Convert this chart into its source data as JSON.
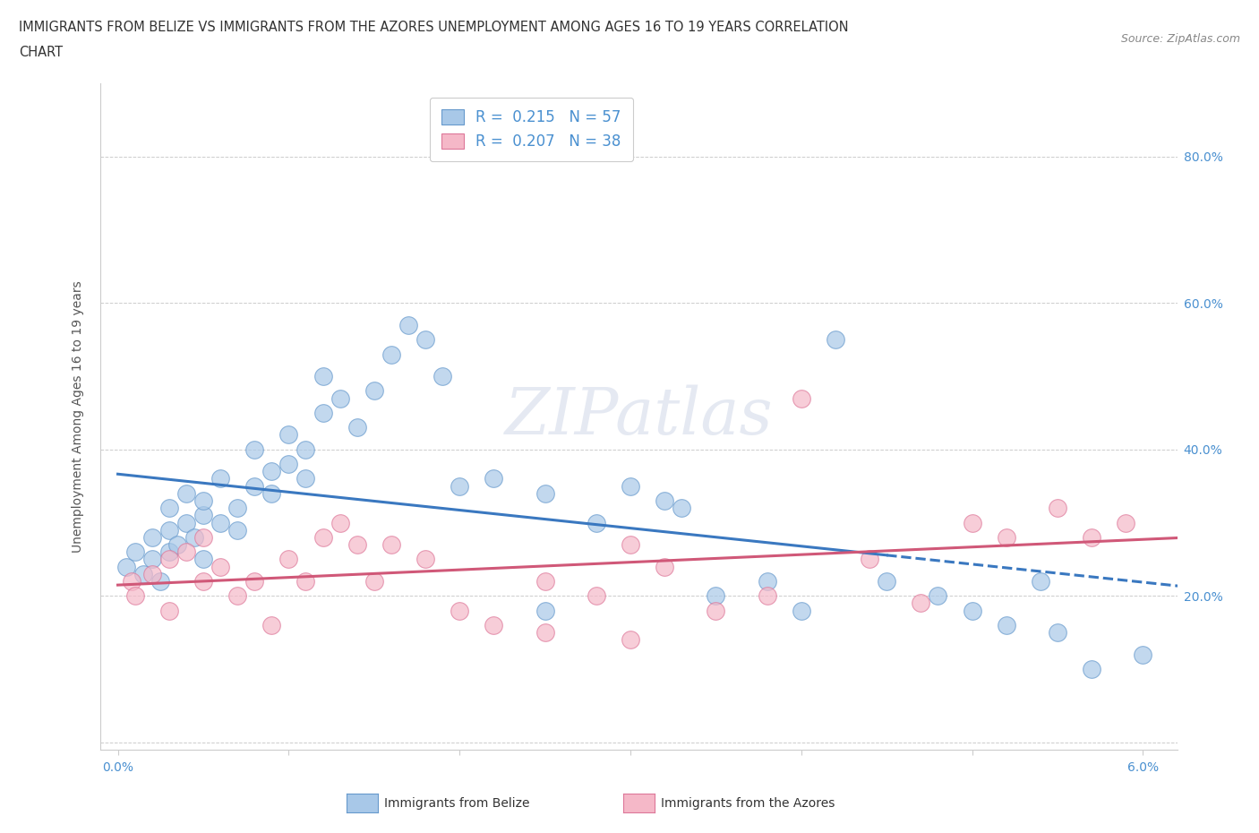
{
  "title_line1": "IMMIGRANTS FROM BELIZE VS IMMIGRANTS FROM THE AZORES UNEMPLOYMENT AMONG AGES 16 TO 19 YEARS CORRELATION",
  "title_line2": "CHART",
  "source": "Source: ZipAtlas.com",
  "ylabel": "Unemployment Among Ages 16 to 19 years",
  "xlim": [
    -0.001,
    0.062
  ],
  "ylim": [
    -0.01,
    0.9
  ],
  "ytick_positions": [
    0.0,
    0.2,
    0.4,
    0.6,
    0.8
  ],
  "ytick_labels": [
    "",
    "20.0%",
    "40.0%",
    "60.0%",
    "80.0%"
  ],
  "xtick_positions": [
    0.0,
    0.01,
    0.02,
    0.03,
    0.04,
    0.05,
    0.06
  ],
  "xtick_labels": [
    "0.0%",
    "",
    "",
    "",
    "",
    "",
    "6.0%"
  ],
  "legend_belize_R": "0.215",
  "legend_belize_N": "57",
  "legend_azores_R": "0.207",
  "legend_azores_N": "38",
  "color_belize_fill": "#a8c8e8",
  "color_belize_edge": "#6699cc",
  "color_azores_fill": "#f5b8c8",
  "color_azores_edge": "#dd7799",
  "color_belize_line": "#3a78c0",
  "color_azores_line": "#d05878",
  "color_tick_label": "#4a90d0",
  "belize_x": [
    0.0005,
    0.001,
    0.0015,
    0.002,
    0.002,
    0.0025,
    0.003,
    0.003,
    0.003,
    0.0035,
    0.004,
    0.004,
    0.0045,
    0.005,
    0.005,
    0.005,
    0.006,
    0.006,
    0.007,
    0.007,
    0.008,
    0.008,
    0.009,
    0.009,
    0.01,
    0.01,
    0.011,
    0.011,
    0.012,
    0.012,
    0.013,
    0.014,
    0.015,
    0.016,
    0.017,
    0.018,
    0.019,
    0.02,
    0.022,
    0.025,
    0.025,
    0.028,
    0.03,
    0.032,
    0.033,
    0.035,
    0.038,
    0.04,
    0.042,
    0.045,
    0.048,
    0.05,
    0.052,
    0.054,
    0.055,
    0.057,
    0.06
  ],
  "belize_y": [
    0.24,
    0.26,
    0.23,
    0.25,
    0.28,
    0.22,
    0.26,
    0.29,
    0.32,
    0.27,
    0.3,
    0.34,
    0.28,
    0.31,
    0.25,
    0.33,
    0.3,
    0.36,
    0.32,
    0.29,
    0.35,
    0.4,
    0.37,
    0.34,
    0.38,
    0.42,
    0.36,
    0.4,
    0.45,
    0.5,
    0.47,
    0.43,
    0.48,
    0.53,
    0.57,
    0.55,
    0.5,
    0.35,
    0.36,
    0.34,
    0.18,
    0.3,
    0.35,
    0.33,
    0.32,
    0.2,
    0.22,
    0.18,
    0.55,
    0.22,
    0.2,
    0.18,
    0.16,
    0.22,
    0.15,
    0.1,
    0.12
  ],
  "azores_x": [
    0.0008,
    0.001,
    0.002,
    0.003,
    0.003,
    0.004,
    0.005,
    0.005,
    0.006,
    0.007,
    0.008,
    0.009,
    0.01,
    0.011,
    0.012,
    0.013,
    0.014,
    0.015,
    0.016,
    0.018,
    0.02,
    0.022,
    0.025,
    0.028,
    0.03,
    0.032,
    0.035,
    0.038,
    0.04,
    0.044,
    0.047,
    0.05,
    0.052,
    0.055,
    0.057,
    0.059,
    0.03,
    0.025
  ],
  "azores_y": [
    0.22,
    0.2,
    0.23,
    0.25,
    0.18,
    0.26,
    0.22,
    0.28,
    0.24,
    0.2,
    0.22,
    0.16,
    0.25,
    0.22,
    0.28,
    0.3,
    0.27,
    0.22,
    0.27,
    0.25,
    0.18,
    0.16,
    0.22,
    0.2,
    0.27,
    0.24,
    0.18,
    0.2,
    0.47,
    0.25,
    0.19,
    0.3,
    0.28,
    0.32,
    0.28,
    0.3,
    0.14,
    0.15
  ],
  "watermark_text": "ZIPatlas",
  "background_color": "#ffffff",
  "grid_color": "#cccccc"
}
